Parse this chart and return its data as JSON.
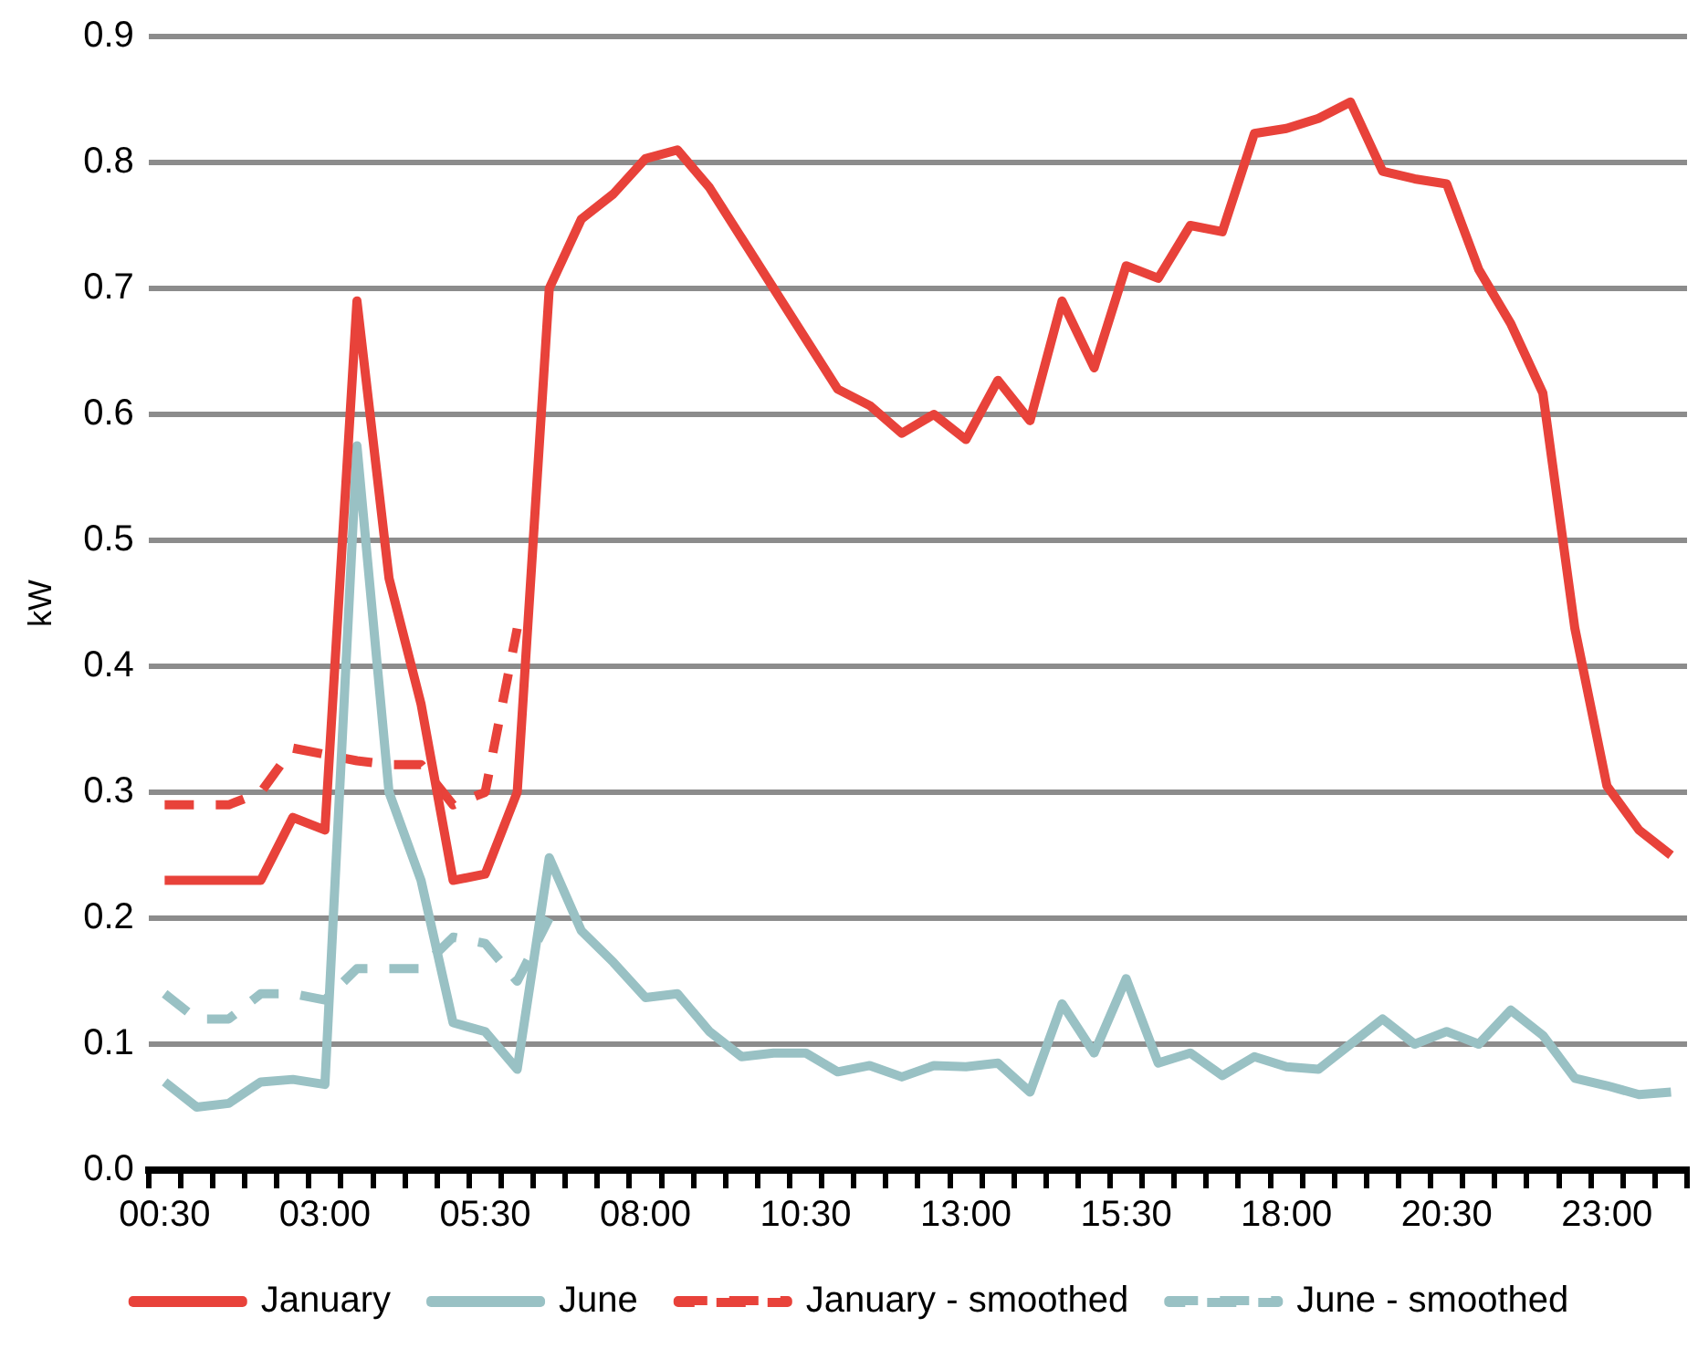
{
  "chart_data": {
    "type": "line",
    "ylabel": "kW",
    "ylim": [
      0,
      0.9
    ],
    "yticks": [
      {
        "value": 0,
        "label": "0.0"
      },
      0.1,
      0.2,
      0.3,
      0.4,
      0.5,
      0.6,
      0.7,
      0.8,
      0.9
    ],
    "grid": "y",
    "legend": "bottom",
    "marker": "none",
    "categories": [
      "00:30",
      null,
      null,
      null,
      null,
      "03:00",
      null,
      null,
      null,
      null,
      "05:30",
      null,
      null,
      null,
      null,
      "08:00",
      null,
      null,
      null,
      null,
      "10:30",
      null,
      null,
      null,
      null,
      "13:00",
      null,
      null,
      null,
      null,
      "15:30",
      null,
      null,
      null,
      null,
      "18:00",
      null,
      null,
      null,
      null,
      "20:30",
      null,
      null,
      null,
      null,
      "23:00",
      null,
      null
    ],
    "series": [
      {
        "name": "January",
        "color": "#e8423a",
        "line_style": "solid",
        "values": [
          0.23,
          0.23,
          0.23,
          0.23,
          0.28,
          0.27,
          0.69,
          0.47,
          0.37,
          0.23,
          0.235,
          0.3,
          0.7,
          0.755,
          0.775,
          0.803,
          0.81,
          0.78,
          0.74,
          0.7,
          0.66,
          0.62,
          0.607,
          0.585,
          0.6,
          0.58,
          0.627,
          0.595,
          0.69,
          0.637,
          0.718,
          0.708,
          0.75,
          0.745,
          0.823,
          0.827,
          0.835,
          0.848,
          0.793,
          0.787,
          0.783,
          0.715,
          0.672,
          0.617,
          0.43,
          0.305,
          0.27,
          0.25
        ]
      },
      {
        "name": "June",
        "color": "#99c1c4",
        "line_style": "solid",
        "values": [
          0.07,
          0.05,
          0.053,
          0.07,
          0.072,
          0.068,
          0.575,
          0.3,
          0.23,
          0.117,
          0.11,
          0.08,
          0.248,
          0.19,
          0.165,
          0.137,
          0.14,
          0.11,
          0.09,
          0.093,
          0.093,
          0.078,
          0.083,
          0.074,
          0.083,
          0.082,
          0.085,
          0.062,
          0.132,
          0.093,
          0.152,
          0.085,
          0.093,
          0.075,
          0.09,
          0.082,
          0.08,
          0.1,
          0.12,
          0.1,
          0.11,
          0.1,
          0.127,
          0.107,
          0.073,
          0.067,
          0.06,
          0.062
        ]
      },
      {
        "name": "January - smoothed",
        "color": "#e8423a",
        "line_style": "dashed",
        "values": [
          0.29,
          0.29,
          0.29,
          0.3,
          0.335,
          0.33,
          0.325,
          0.322,
          0.322,
          0.29,
          0.3,
          0.43,
          null,
          null,
          null,
          null,
          null,
          null,
          null,
          null,
          null,
          null,
          null,
          null,
          null,
          null,
          null,
          null,
          null,
          null,
          null,
          null,
          null,
          null,
          null,
          null,
          null,
          null,
          null,
          null,
          null,
          null,
          null,
          null,
          null,
          null,
          null,
          null
        ]
      },
      {
        "name": "June - smoothed",
        "color": "#99c1c4",
        "line_style": "dashed",
        "values": [
          0.14,
          0.12,
          0.12,
          0.14,
          0.14,
          0.135,
          0.16,
          0.16,
          0.16,
          0.185,
          0.18,
          0.15,
          0.2,
          null,
          null,
          null,
          null,
          null,
          null,
          null,
          null,
          null,
          null,
          null,
          null,
          null,
          null,
          null,
          null,
          null,
          null,
          null,
          null,
          null,
          null,
          null,
          null,
          null,
          null,
          null,
          null,
          null,
          null,
          null,
          null,
          null,
          null,
          null
        ]
      }
    ]
  }
}
